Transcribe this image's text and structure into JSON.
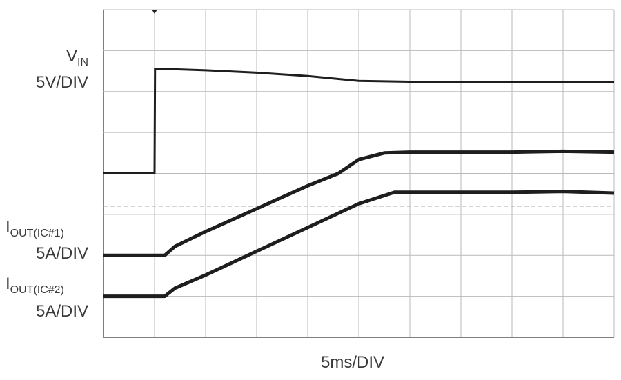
{
  "chart_data": {
    "type": "line",
    "title": "",
    "xlabel": "5ms/DIV",
    "time_per_div_ms": 5,
    "x_divisions": 10,
    "y_divisions": 8,
    "trigger_time_ms": 5,
    "grid": true,
    "series": [
      {
        "label_main": "V",
        "label_sub": "IN",
        "scale": "5V/DIV",
        "unit": "V",
        "ground_div": 4.0,
        "x_ms": [
          0,
          5,
          5.05,
          5.3,
          10,
          15,
          20,
          25,
          30,
          35,
          40,
          45,
          50
        ],
        "y": [
          0,
          0,
          12.8,
          12.8,
          12.6,
          12.3,
          11.9,
          11.3,
          11.2,
          11.2,
          11.2,
          11.2,
          11.2
        ]
      },
      {
        "label_main": "I",
        "label_sub": "OUT(IC#1)",
        "scale": "5A/DIV",
        "unit": "A",
        "ground_div": 2.0,
        "x_ms": [
          0,
          6,
          7,
          10,
          15,
          20,
          23,
          25,
          27.5,
          30,
          35,
          40,
          45,
          50
        ],
        "y": [
          0,
          0,
          1.1,
          2.9,
          5.7,
          8.5,
          10.0,
          11.7,
          12.5,
          12.6,
          12.6,
          12.6,
          12.7,
          12.6
        ]
      },
      {
        "label_main": "I",
        "label_sub": "OUT(IC#2)",
        "scale": "5A/DIV",
        "unit": "A",
        "ground_div": 1.0,
        "x_ms": [
          0,
          6,
          7,
          10,
          15,
          20,
          25,
          28.5,
          30,
          35,
          40,
          45,
          50
        ],
        "y": [
          0,
          0,
          1.0,
          2.6,
          5.5,
          8.4,
          11.3,
          12.7,
          12.7,
          12.7,
          12.7,
          12.8,
          12.6
        ]
      }
    ]
  }
}
